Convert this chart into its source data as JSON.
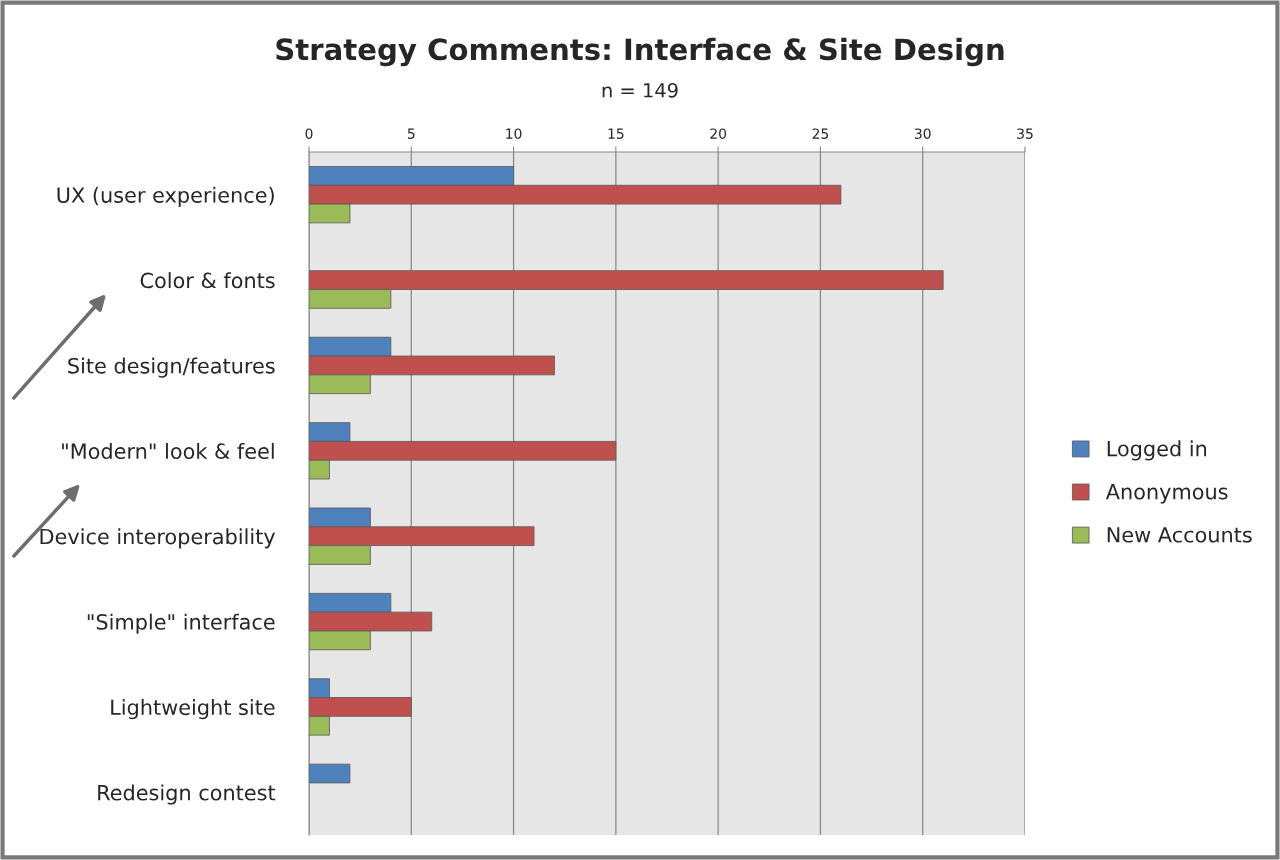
{
  "chart_data": {
    "type": "bar",
    "orientation": "horizontal",
    "title": "Strategy Comments: Interface & Site Design",
    "subtitle": "n = 149",
    "categories": [
      "UX (user experience)",
      "Color & fonts",
      "Site design/features",
      "\"Modern\" look & feel",
      "Device interoperability",
      "\"Simple\" interface",
      "Lightweight site",
      "Redesign contest"
    ],
    "series": [
      {
        "name": "Logged in",
        "color": "#4f81bd",
        "values": [
          10,
          0,
          4,
          2,
          3,
          4,
          1,
          2
        ]
      },
      {
        "name": "Anonymous",
        "color": "#c0504d",
        "values": [
          26,
          31,
          12,
          15,
          11,
          6,
          5,
          0
        ]
      },
      {
        "name": "New Accounts",
        "color": "#9bbb59",
        "values": [
          2,
          4,
          3,
          1,
          3,
          3,
          1,
          0
        ]
      }
    ],
    "xlim": [
      0,
      35
    ],
    "xticks": [
      0,
      5,
      10,
      15,
      20,
      25,
      30,
      35
    ],
    "grid": "x",
    "legend": "right"
  }
}
